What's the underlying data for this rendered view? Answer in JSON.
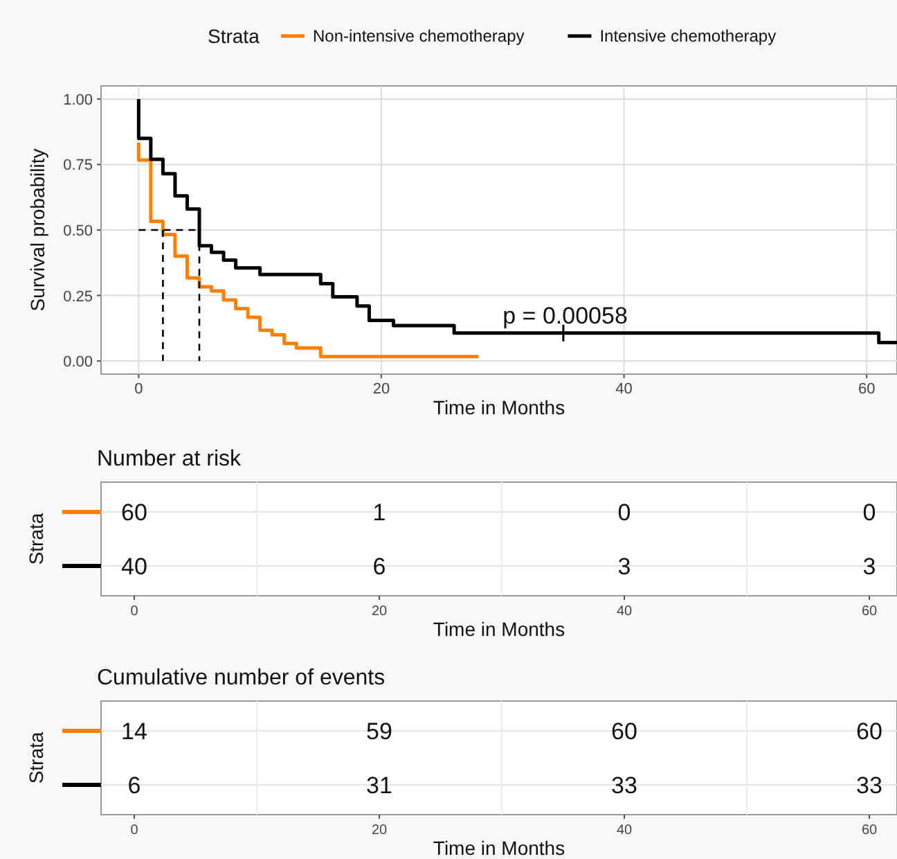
{
  "chart_data": [
    {
      "type": "step",
      "xlabel": "Time in Months",
      "ylabel": "Survival probability",
      "legend_title": "Strata",
      "legend": "top",
      "grid": true,
      "xlim": [
        -3.1,
        62.5
      ],
      "xticks": [
        0,
        20,
        40,
        60
      ],
      "ylim": [
        -0.05,
        1.05
      ],
      "yticks": [
        {
          "value": 0,
          "label": "0.00"
        },
        {
          "value": 0.25,
          "label": "0.25"
        },
        {
          "value": 0.5,
          "label": "0.50"
        },
        {
          "value": 0.75,
          "label": "0.75"
        },
        {
          "value": 1,
          "label": "1.00"
        }
      ],
      "annotations": [
        "p = 0.00058"
      ],
      "series": [
        {
          "name": "Non-intensive chemotherapy",
          "color": "#ff8000",
          "x": [
            0,
            0,
            1,
            2,
            3,
            4,
            5,
            6,
            7,
            8,
            9,
            10,
            11,
            12,
            13,
            15,
            28
          ],
          "values": [
            0.833,
            0.767,
            0.533,
            0.483,
            0.4,
            0.317,
            0.283,
            0.267,
            0.233,
            0.2,
            0.167,
            0.117,
            0.1,
            0.067,
            0.05,
            0.017,
            0.017
          ]
        },
        {
          "name": "Intensive chemotherapy",
          "color": "#000000",
          "x": [
            0,
            0,
            1,
            2,
            3,
            4,
            5,
            6,
            7,
            8,
            10,
            15,
            16,
            18,
            19,
            21,
            26,
            61,
            62.5
          ],
          "values": [
            1,
            0.85,
            0.77,
            0.715,
            0.63,
            0.58,
            0.44,
            0.415,
            0.385,
            0.355,
            0.33,
            0.295,
            0.245,
            0.21,
            0.155,
            0.135,
            0.107,
            0.07,
            0.07
          ]
        },
        {
          "type": "line",
          "line_style": "dashed",
          "color": "#000000",
          "x": [
            0,
            5,
            5
          ],
          "values": [
            0.5,
            0.5,
            0
          ]
        },
        {
          "type": "line",
          "line_style": "dashed",
          "color": "#000000",
          "x": [
            2,
            2
          ],
          "values": [
            0.5,
            0
          ]
        },
        {
          "type": "scatter",
          "marker": "cross",
          "color": "#000000",
          "x": [
            35
          ],
          "values": [
            0.107
          ]
        }
      ]
    },
    {
      "type": "heatmap",
      "title": "Number at risk",
      "xlabel": "Time in Months",
      "ylabel": "Strata",
      "data_labels": true,
      "categories": [
        "0",
        "20",
        "40",
        "60"
      ],
      "y_categories": [
        null,
        null
      ],
      "colors": [
        "#ff8000",
        "#000000"
      ],
      "cells": [
        [
          60,
          1,
          0,
          0
        ],
        [
          40,
          6,
          3,
          3
        ]
      ]
    },
    {
      "type": "heatmap",
      "title": "Cumulative number of events",
      "xlabel": "Time in Months",
      "ylabel": "Strata",
      "data_labels": true,
      "categories": [
        "0",
        "20",
        "40",
        "60"
      ],
      "y_categories": [
        null,
        null
      ],
      "colors": [
        "#ff8000",
        "#000000"
      ],
      "cells": [
        [
          14,
          59,
          60,
          60
        ],
        [
          6,
          31,
          33,
          33
        ]
      ]
    }
  ]
}
